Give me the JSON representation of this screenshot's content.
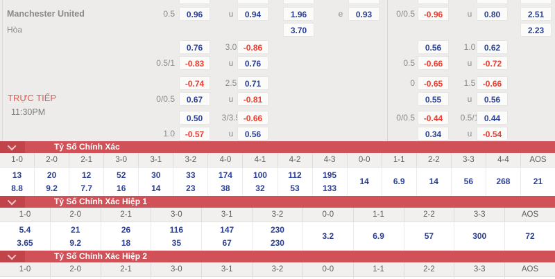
{
  "palette": {
    "page_bg": "#edeceb",
    "odds_blue": "#2b3f94",
    "odds_red": "#f03a2e",
    "team_red": "#e7382c",
    "section_bar_red": "#d05258",
    "section_bar_square_red": "#c2444b"
  },
  "odds_panel": {
    "live_label": "TRỰC TIẾP",
    "time": "11:30PM",
    "rows": [
      {
        "cells": [
          {
            "col": "team",
            "text": "Manchester United",
            "color": "team",
            "name": "home-team-name"
          },
          {
            "col": "hcp1",
            "text": "0.5"
          },
          {
            "col": "box1",
            "text": "0.96",
            "color": "blue"
          },
          {
            "col": "mid1",
            "text": "u"
          },
          {
            "col": "box2",
            "text": "0.94",
            "color": "blue"
          },
          {
            "col": "box3",
            "text": "1.96",
            "color": "blue"
          },
          {
            "col": "mid2",
            "text": "e"
          },
          {
            "col": "box4",
            "text": "0.93",
            "color": "blue"
          },
          {
            "col": "hcp2",
            "text": "0/0.5"
          },
          {
            "col": "box5",
            "text": "-0.96",
            "color": "red"
          },
          {
            "col": "mid3",
            "text": "u"
          },
          {
            "col": "box6",
            "text": "0.80",
            "color": "blue"
          },
          {
            "col": "box7",
            "text": "2.51",
            "color": "blue"
          }
        ]
      },
      {
        "cells": [
          {
            "col": "team",
            "text": "Hòa",
            "color": "muted",
            "name": "draw-label"
          },
          {
            "col": "box3",
            "text": "3.70",
            "color": "blue"
          },
          {
            "col": "box7",
            "text": "2.23",
            "color": "blue"
          }
        ]
      },
      {
        "cells": [
          {
            "col": "box1",
            "text": "0.76",
            "color": "blue"
          },
          {
            "col": "mid1",
            "text": "3.0"
          },
          {
            "col": "box2",
            "text": "-0.86",
            "color": "red"
          },
          {
            "col": "box5",
            "text": "0.56",
            "color": "blue"
          },
          {
            "col": "mid3",
            "text": "1.0"
          },
          {
            "col": "box6",
            "text": "0.62",
            "color": "blue"
          }
        ]
      },
      {
        "cells": [
          {
            "col": "hcp1",
            "text": "0.5/1"
          },
          {
            "col": "box1",
            "text": "-0.83",
            "color": "red"
          },
          {
            "col": "mid1",
            "text": "u"
          },
          {
            "col": "box2",
            "text": "0.76",
            "color": "blue"
          },
          {
            "col": "hcp2",
            "text": "0.5"
          },
          {
            "col": "box5",
            "text": "-0.66",
            "color": "red"
          },
          {
            "col": "mid3",
            "text": "u"
          },
          {
            "col": "box6",
            "text": "-0.72",
            "color": "red"
          }
        ]
      },
      {
        "cells": [
          {
            "col": "box1",
            "text": "-0.74",
            "color": "red"
          },
          {
            "col": "mid1",
            "text": "2.5"
          },
          {
            "col": "box2",
            "text": "0.71",
            "color": "blue"
          },
          {
            "col": "hcp2",
            "text": "0"
          },
          {
            "col": "box5",
            "text": "-0.65",
            "color": "red"
          },
          {
            "col": "mid3",
            "text": "1.5"
          },
          {
            "col": "box6",
            "text": "-0.66",
            "color": "red"
          }
        ]
      },
      {
        "cells": [
          {
            "col": "hcp1",
            "text": "0/0.5"
          },
          {
            "col": "box1",
            "text": "0.67",
            "color": "blue"
          },
          {
            "col": "mid1",
            "text": "u"
          },
          {
            "col": "box2",
            "text": "-0.81",
            "color": "red"
          },
          {
            "col": "box5",
            "text": "0.55",
            "color": "blue"
          },
          {
            "col": "mid3",
            "text": "u"
          },
          {
            "col": "box6",
            "text": "0.56",
            "color": "blue"
          }
        ]
      },
      {
        "cells": [
          {
            "col": "box1",
            "text": "0.50",
            "color": "blue"
          },
          {
            "col": "mid1",
            "text": "3/3.5"
          },
          {
            "col": "box2",
            "text": "-0.66",
            "color": "red"
          },
          {
            "col": "hcp2",
            "text": "0/0.5"
          },
          {
            "col": "box5",
            "text": "-0.44",
            "color": "red"
          },
          {
            "col": "mid3",
            "text": "0.5/1"
          },
          {
            "col": "box6",
            "text": "0.44",
            "color": "blue"
          }
        ]
      },
      {
        "cells": [
          {
            "col": "hcp1",
            "text": "1.0"
          },
          {
            "col": "box1",
            "text": "-0.57",
            "color": "red"
          },
          {
            "col": "mid1",
            "text": "u"
          },
          {
            "col": "box2",
            "text": "0.56",
            "color": "blue"
          },
          {
            "col": "box5",
            "text": "0.34",
            "color": "blue"
          },
          {
            "col": "mid3",
            "text": "u"
          },
          {
            "col": "box6",
            "text": "-0.54",
            "color": "red"
          }
        ]
      }
    ]
  },
  "score_sections": [
    {
      "title": "Tỷ Số Chính Xác",
      "columns": [
        "1-0",
        "2-0",
        "2-1",
        "3-0",
        "3-1",
        "3-2",
        "4-0",
        "4-1",
        "4-2",
        "4-3",
        "0-0",
        "1-1",
        "2-2",
        "3-3",
        "4-4",
        "AOS"
      ],
      "odds": [
        [
          "13",
          "8.8"
        ],
        [
          "20",
          "9.2"
        ],
        [
          "12",
          "7.7"
        ],
        [
          "52",
          "16"
        ],
        [
          "30",
          "14"
        ],
        [
          "33",
          "23"
        ],
        [
          "174",
          "38"
        ],
        [
          "100",
          "32"
        ],
        [
          "112",
          "53"
        ],
        [
          "195",
          "133"
        ],
        [
          "14"
        ],
        [
          "6.9"
        ],
        [
          "14"
        ],
        [
          "56"
        ],
        [
          "268"
        ],
        [
          "21"
        ]
      ]
    },
    {
      "title": "Tỷ Số Chính Xác Hiệp 1",
      "columns": [
        "1-0",
        "2-0",
        "2-1",
        "3-0",
        "3-1",
        "3-2",
        "0-0",
        "1-1",
        "2-2",
        "3-3",
        "AOS"
      ],
      "odds": [
        [
          "5.4",
          "3.65"
        ],
        [
          "21",
          "9.2"
        ],
        [
          "26",
          "18"
        ],
        [
          "116",
          "35"
        ],
        [
          "147",
          "67"
        ],
        [
          "230",
          "230"
        ],
        [
          "3.2"
        ],
        [
          "6.9"
        ],
        [
          "57"
        ],
        [
          "300"
        ],
        [
          "72"
        ]
      ]
    },
    {
      "title": "Tỷ Số Chính Xác Hiệp 2",
      "columns": [
        "1-0",
        "2-0",
        "2-1",
        "3-0",
        "3-1",
        "3-2",
        "0-0",
        "1-1",
        "2-2",
        "3-3",
        "AOS"
      ],
      "odds": []
    }
  ]
}
